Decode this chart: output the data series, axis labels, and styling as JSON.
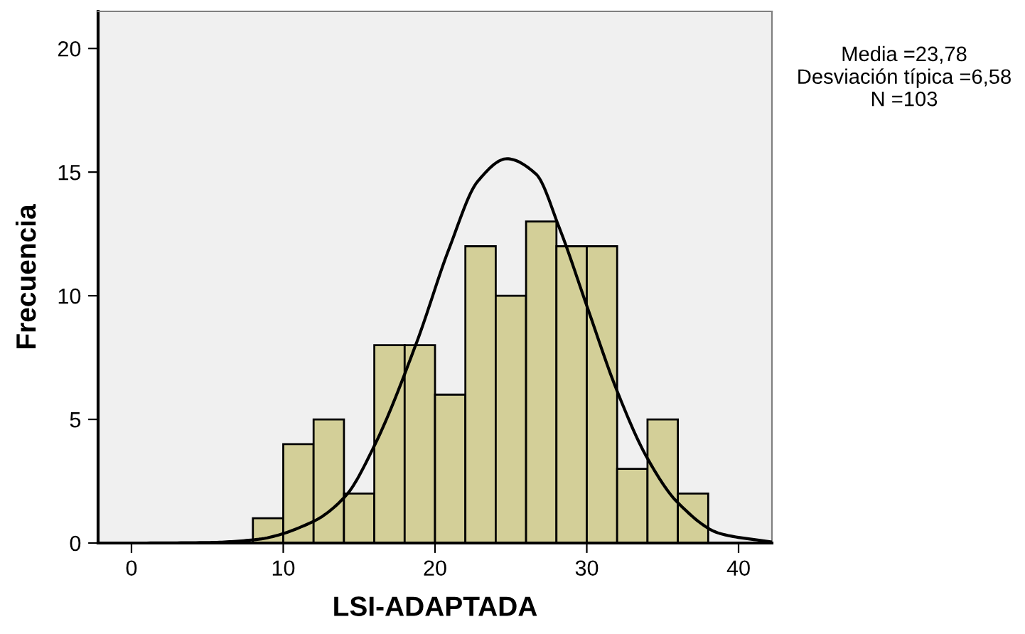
{
  "chart_data": {
    "type": "histogram",
    "xlabel": "LSI-ADAPTADA",
    "ylabel": "Frecuencia",
    "bins": [
      8,
      10,
      12,
      14,
      16,
      18,
      20,
      22,
      24,
      26,
      28,
      30,
      32,
      34,
      36,
      38
    ],
    "values": [
      1,
      4,
      5,
      2,
      8,
      8,
      6,
      12,
      10,
      13,
      12,
      12,
      3,
      5,
      2
    ],
    "color": "#d3cf98",
    "series": [
      {
        "type": "line",
        "color": "#000000",
        "x": [
          -2.2,
          0,
          5,
          8.2,
          11.94,
          14.13,
          16.0,
          18.8,
          20.96,
          22.83,
          24.74,
          26.64,
          28.2,
          30.07,
          31.95,
          33.98,
          36.0,
          38.8,
          42.2
        ],
        "values": [
          0,
          0,
          0.02,
          0.14,
          0.86,
          1.92,
          3.93,
          8.13,
          11.96,
          14.64,
          15.54,
          14.93,
          12.73,
          9.47,
          6.22,
          3.44,
          1.63,
          0.38,
          0.04
        ]
      }
    ],
    "xlim": [
      -2.2,
      42.2
    ],
    "ylim": [
      0,
      21.5
    ],
    "xticks": [
      0,
      10,
      20,
      30,
      40
    ],
    "yticks": [
      0,
      5,
      10,
      15,
      20
    ],
    "grid": false,
    "legend": false,
    "annotations": [
      "Media =23,78",
      "Desviación típica =6,58",
      "N =103"
    ]
  }
}
